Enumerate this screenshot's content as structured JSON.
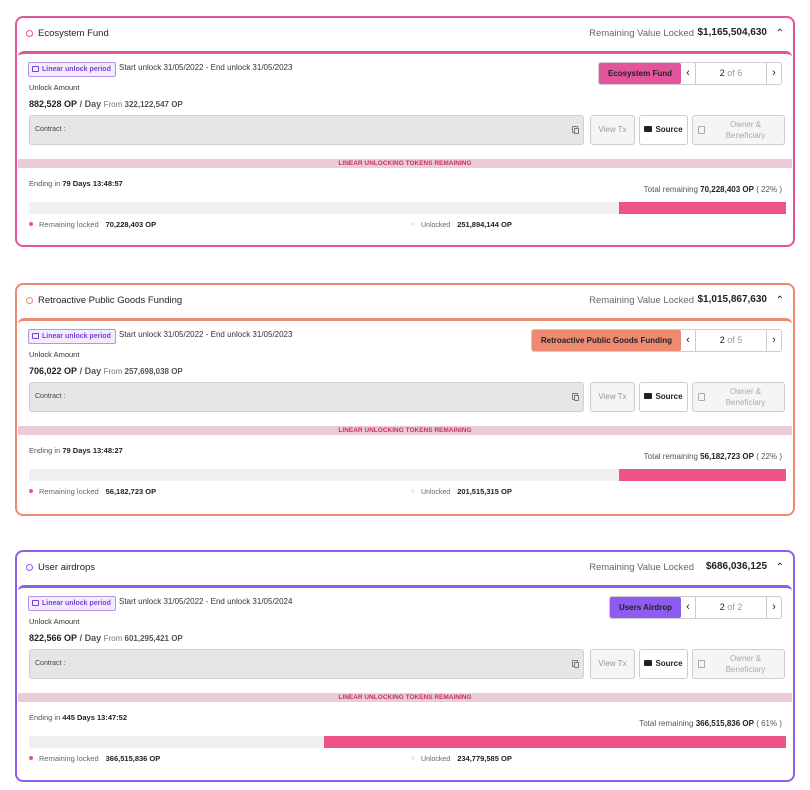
{
  "funds": [
    {
      "color": "#e2559d",
      "title": "Ecosystem Fund",
      "rvl_label": "Remaining Value Locked",
      "rvl_value": "$1,165,504,630",
      "badge": "Linear unlock period",
      "period": "Start unlock 31/05/2022 - End unlock 31/05/2023",
      "unlock_label": "Unlock Amount",
      "rate": "882,528 OP",
      "per": "/ Day",
      "from_label": "From",
      "from_value": "322,122,547 OP",
      "pager_tag": "Ecosystem Fund",
      "pager_current": "2",
      "pager_of": "of 6",
      "contract_label": "Contract :",
      "viewtx": "View Tx",
      "source": "Source",
      "owner": "Owner & Beneficiary",
      "band": "LINEAR UNLOCKING TOKENS REMAINING",
      "ending_label": "Ending in",
      "ending_value": "79 Days 13:48:57",
      "total_label": "Total remaining",
      "total_value": "70,228,403 OP",
      "total_pct": "( 22% )",
      "remaining_fraction": 0.22,
      "rl_label": "Remaining locked",
      "rl_value": "70,228,403 OP",
      "ul_label": "Unlocked",
      "ul_value": "251,894,144 OP"
    },
    {
      "color": "#ee8a72",
      "title": "Retroactive Public Goods Funding",
      "rvl_label": "Remaining Value Locked",
      "rvl_value": "$1,015,867,630",
      "badge": "Linear unlock period",
      "period": "Start unlock 31/05/2022 - End unlock 31/05/2023",
      "unlock_label": "Unlock Amount",
      "rate": "706,022 OP",
      "per": "/ Day",
      "from_label": "From",
      "from_value": "257,698,038 OP",
      "pager_tag": "Retroactive Public Goods Funding",
      "pager_current": "2",
      "pager_of": "of 5",
      "contract_label": "Contract :",
      "viewtx": "View Tx",
      "source": "Source",
      "owner": "Owner & Beneficiary",
      "band": "LINEAR UNLOCKING TOKENS REMAINING",
      "ending_label": "Ending in",
      "ending_value": "79 Days 13:48:27",
      "total_label": "Total remaining",
      "total_value": "56,182,723 OP",
      "total_pct": "( 22% )",
      "remaining_fraction": 0.22,
      "rl_label": "Remaining locked",
      "rl_value": "56,182,723 OP",
      "ul_label": "Unlocked",
      "ul_value": "201,515,315 OP"
    },
    {
      "color": "#8d5cf0",
      "title": "User airdrops",
      "rvl_label": "Remaining Value Locked",
      "rvl_value": "$686,036,125",
      "badge": "Linear unlock period",
      "period": "Start unlock 31/05/2022 - End unlock 31/05/2024",
      "unlock_label": "Unlock Amount",
      "rate": "822,566 OP",
      "per": "/ Day",
      "from_label": "From",
      "from_value": "601,295,421 OP",
      "pager_tag": "Users Airdrop",
      "pager_current": "2",
      "pager_of": "of 2",
      "contract_label": "Contract :",
      "viewtx": "View Tx",
      "source": "Source",
      "owner": "Owner & Beneficiary",
      "band": "LINEAR UNLOCKING TOKENS REMAINING",
      "ending_label": "Ending in",
      "ending_value": "445 Days 13:47:52",
      "total_label": "Total remaining",
      "total_value": "366,515,836 OP",
      "total_pct": "( 61% )",
      "remaining_fraction": 0.61,
      "rl_label": "Remaining locked",
      "rl_value": "366,515,836 OP",
      "ul_label": "Unlocked",
      "ul_value": "234,779,585 OP"
    }
  ],
  "icons": {
    "lock": "lock-icon",
    "chevron_up": "chevron-up-icon",
    "prev": "chevron-left-icon",
    "next": "chevron-right-icon",
    "copy": "copy-icon",
    "folder": "folder-icon",
    "owner": "contact-card-icon"
  }
}
